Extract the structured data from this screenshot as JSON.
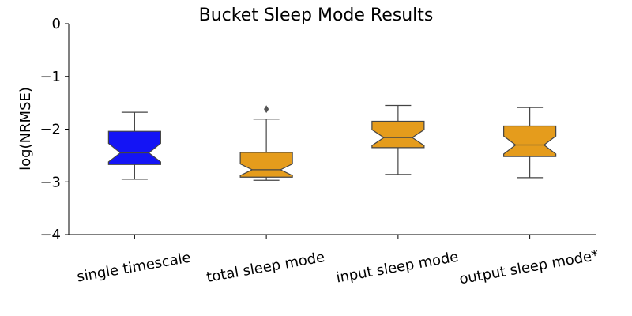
{
  "chart_data": {
    "type": "box",
    "title": "Bucket Sleep Mode Results",
    "xlabel": "",
    "ylabel": "log(NRMSE)",
    "ylim": [
      -4,
      0
    ],
    "yticks": [
      0,
      -1,
      -2,
      -3,
      -4
    ],
    "ytick_labels": [
      "0",
      "−1",
      "−2",
      "−3",
      "−4"
    ],
    "notched": true,
    "grid": false,
    "categories": [
      "single timescale",
      "total sleep mode",
      "input sleep mode",
      "output sleep mode*"
    ],
    "boxes": [
      {
        "label": "single timescale",
        "whisker_low": -2.95,
        "q1": -2.67,
        "median": -2.45,
        "q3": -2.04,
        "whisker_high": -1.68,
        "notch_low": -2.62,
        "notch_high": -2.27,
        "outliers": [],
        "color": "#1414f5"
      },
      {
        "label": "total sleep mode",
        "whisker_low": -2.97,
        "q1": -2.91,
        "median": -2.77,
        "q3": -2.44,
        "whisker_high": -1.81,
        "notch_low": -2.88,
        "notch_high": -2.66,
        "outliers": [
          -1.62
        ],
        "color": "#e59c1c"
      },
      {
        "label": "input sleep mode",
        "whisker_low": -2.86,
        "q1": -2.35,
        "median": -2.16,
        "q3": -1.85,
        "whisker_high": -1.55,
        "notch_low": -2.31,
        "notch_high": -2.01,
        "outliers": [],
        "color": "#e59c1c"
      },
      {
        "label": "output sleep mode*",
        "whisker_low": -2.92,
        "q1": -2.52,
        "median": -2.3,
        "q3": -1.94,
        "whisker_high": -1.59,
        "notch_low": -2.47,
        "notch_high": -2.13,
        "outliers": [],
        "color": "#e59c1c"
      }
    ]
  }
}
